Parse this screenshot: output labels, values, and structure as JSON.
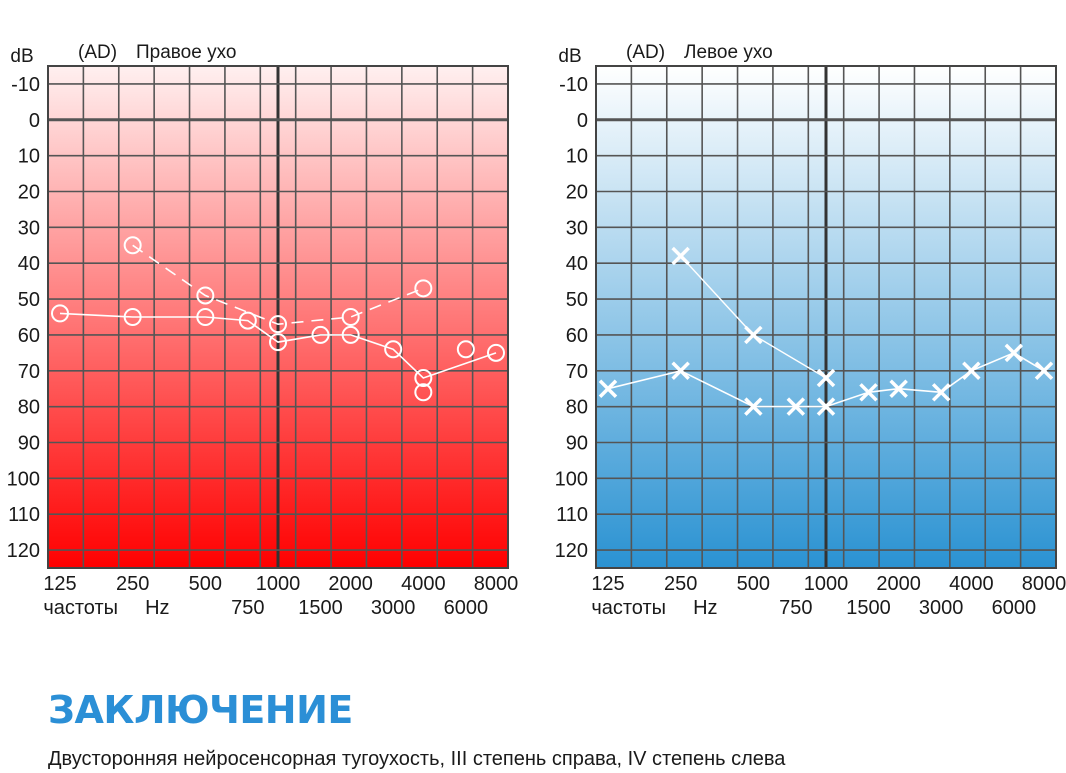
{
  "colors": {
    "right_top": "#fff0f0",
    "right_bottom": "#ff0000",
    "left_top": "#ffffff",
    "left_bottom": "#2a92d2",
    "marks": "#ffffff",
    "grid": "#555555",
    "heading": "#2b8fd6"
  },
  "chart_data": [
    {
      "type": "line",
      "title": "Правое ухо",
      "ear_code": "(AD)",
      "ylabel": "dB",
      "y_tick_labels": [
        "-10",
        "0",
        "10",
        "20",
        "30",
        "40",
        "50",
        "60",
        "70",
        "80",
        "90",
        "100",
        "110",
        "120"
      ],
      "ylim": [
        -15,
        125
      ],
      "x_tick_labels_top": [
        "125",
        "250",
        "500",
        "1000",
        "2000",
        "4000",
        "8000"
      ],
      "x_tick_labels_bottom": [
        "750",
        "1500",
        "3000",
        "6000"
      ],
      "xlabel": "частоты",
      "x_unit": "Hz",
      "categories": [
        "125",
        "250",
        "500",
        "750",
        "1000",
        "1500",
        "2000",
        "3000",
        "4000",
        "6000",
        "8000"
      ],
      "marker": "circle",
      "series": [
        {
          "name": "air",
          "style": "solid",
          "x": [
            125,
            250,
            500,
            750,
            1000,
            1500,
            2000,
            3000,
            4000,
            6000,
            8000
          ],
          "values": [
            54,
            55,
            55,
            56,
            62,
            60,
            60,
            64,
            72,
            null,
            65
          ]
        },
        {
          "name": "air-extra",
          "style": "none",
          "x": [
            4000,
            6000
          ],
          "values": [
            76,
            64
          ]
        },
        {
          "name": "bone",
          "style": "dashed",
          "x": [
            250,
            500,
            1000,
            2000,
            4000
          ],
          "values": [
            35,
            49,
            57,
            55,
            47
          ]
        }
      ]
    },
    {
      "type": "line",
      "title": "Левое ухо",
      "ear_code": "(AD)",
      "ylabel": "dB",
      "y_tick_labels": [
        "-10",
        "0",
        "10",
        "20",
        "30",
        "40",
        "50",
        "60",
        "70",
        "80",
        "90",
        "100",
        "110",
        "120"
      ],
      "ylim": [
        -15,
        125
      ],
      "x_tick_labels_top": [
        "125",
        "250",
        "500",
        "1000",
        "2000",
        "4000",
        "8000"
      ],
      "x_tick_labels_bottom": [
        "750",
        "1500",
        "3000",
        "6000"
      ],
      "xlabel": "частоты",
      "x_unit": "Hz",
      "categories": [
        "125",
        "250",
        "500",
        "750",
        "1000",
        "1500",
        "2000",
        "3000",
        "4000",
        "6000",
        "8000"
      ],
      "marker": "cross",
      "series": [
        {
          "name": "air",
          "style": "solid",
          "x": [
            125,
            250,
            500,
            750,
            1000,
            1500,
            2000,
            3000,
            4000,
            6000,
            8000
          ],
          "values": [
            75,
            70,
            80,
            80,
            80,
            76,
            75,
            76,
            70,
            65,
            70
          ]
        },
        {
          "name": "bone",
          "style": "solid-thin",
          "x": [
            250,
            500,
            1000
          ],
          "values": [
            38,
            60,
            72
          ]
        }
      ]
    }
  ],
  "conclusion": {
    "title": "ЗАКЛЮЧЕНИЕ",
    "text": "Двусторонняя нейросенсорная тугоухость, III степень справа, IV степень слева"
  }
}
